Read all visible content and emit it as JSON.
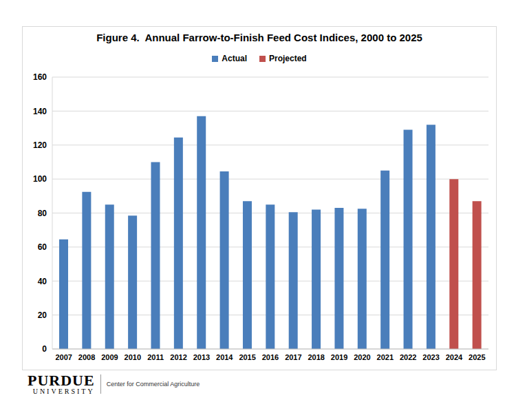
{
  "chart_data": {
    "type": "bar",
    "title": "Figure 4.  Annual Farrow-to-Finish Feed Cost Indices, 2000 to 2025",
    "categories": [
      "2007",
      "2008",
      "2009",
      "2010",
      "2011",
      "2012",
      "2013",
      "2014",
      "2015",
      "2016",
      "2017",
      "2018",
      "2019",
      "2020",
      "2021",
      "2022",
      "2023",
      "2024",
      "2025"
    ],
    "series": [
      {
        "name": "Actual",
        "color": "#4a7ebb",
        "values": [
          64.5,
          92.5,
          85,
          78.5,
          110,
          124.5,
          137,
          104.5,
          87,
          85,
          80.5,
          82,
          83,
          82.5,
          105,
          129,
          132,
          null,
          null
        ]
      },
      {
        "name": "Projected",
        "color": "#c0504d",
        "values": [
          null,
          null,
          null,
          null,
          null,
          null,
          null,
          null,
          null,
          null,
          null,
          null,
          null,
          null,
          null,
          null,
          null,
          100,
          87
        ]
      }
    ],
    "ylim": [
      0,
      160
    ],
    "yticks": [
      0,
      20,
      40,
      60,
      80,
      100,
      120,
      140,
      160
    ],
    "grid": true,
    "legend": "top",
    "annotations": [
      "PURDUE",
      "UNIVERSITY",
      "Center for Commercial Agriculture"
    ]
  }
}
